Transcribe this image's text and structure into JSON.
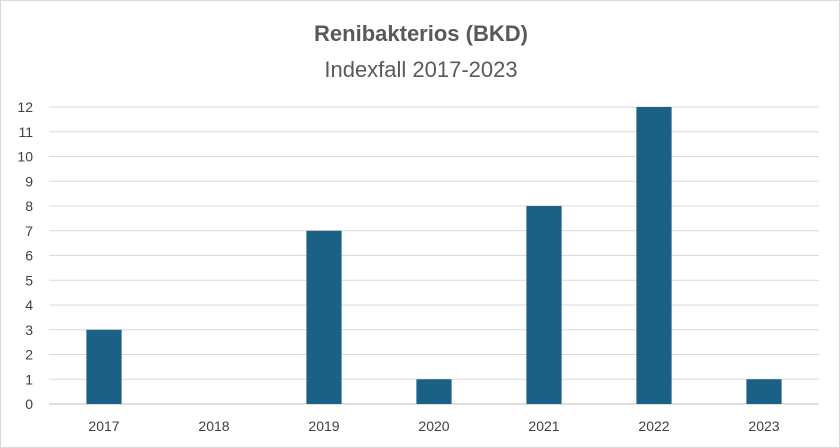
{
  "chart_data": {
    "type": "bar",
    "title": "Renibakterios (BKD)",
    "subtitle": "Indexfall 2017-2023",
    "categories": [
      "2017",
      "2018",
      "2019",
      "2020",
      "2021",
      "2022",
      "2023"
    ],
    "values": [
      3,
      0,
      7,
      1,
      8,
      12,
      1
    ],
    "ylim": [
      0,
      12
    ],
    "yticks": [
      0,
      1,
      2,
      3,
      4,
      5,
      6,
      7,
      8,
      9,
      10,
      11,
      12
    ],
    "grid": true,
    "legend": "none",
    "colors": {
      "bar": "#1a6185"
    }
  }
}
